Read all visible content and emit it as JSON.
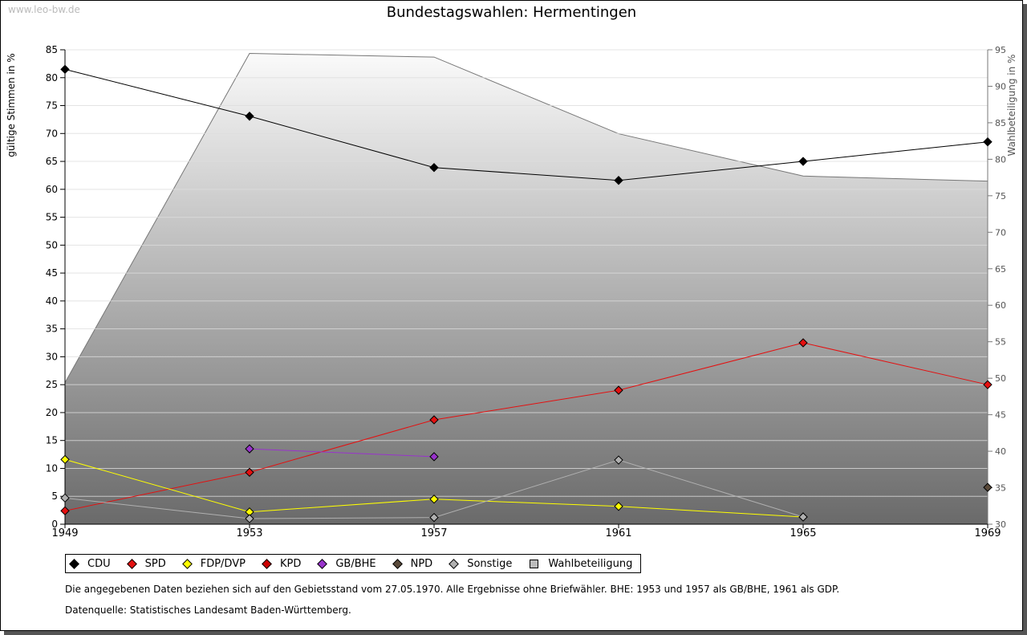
{
  "watermark": "www.leo-bw.de",
  "chart_data": {
    "type": "line",
    "title": "Bundestagswahlen: Hermentingen",
    "ylabel": "gültige Stimmen in %",
    "y2label": "Wahlbeteiligung in %",
    "ylim": [
      0,
      85
    ],
    "y2lim": [
      30,
      95
    ],
    "yticks": [
      0,
      5,
      10,
      15,
      20,
      25,
      30,
      35,
      40,
      45,
      50,
      55,
      60,
      65,
      70,
      75,
      80,
      85
    ],
    "y2ticks": [
      30,
      35,
      40,
      45,
      50,
      55,
      60,
      65,
      70,
      75,
      80,
      85,
      90,
      95
    ],
    "x": [
      "1949",
      "1953",
      "1957",
      "1961",
      "1965",
      "1969"
    ],
    "series": [
      {
        "name": "CDU",
        "color": "#000000",
        "values": [
          81.5,
          73.1,
          63.9,
          61.6,
          65.0,
          68.5
        ]
      },
      {
        "name": "SPD",
        "color": "#e41010",
        "values": [
          2.4,
          9.3,
          18.7,
          24.0,
          32.5,
          25.0
        ]
      },
      {
        "name": "FDP/DVP",
        "color": "#ffff00",
        "values": [
          11.6,
          2.2,
          4.5,
          3.2,
          1.3,
          null
        ]
      },
      {
        "name": "KPD",
        "color": "#cc0000",
        "values": [
          null,
          null,
          null,
          null,
          null,
          null
        ]
      },
      {
        "name": "GB/BHE",
        "color": "#9933cc",
        "values": [
          null,
          13.5,
          12.1,
          null,
          null,
          null
        ]
      },
      {
        "name": "NPD",
        "color": "#5a4a3a",
        "values": [
          null,
          null,
          null,
          null,
          null,
          6.6
        ]
      },
      {
        "name": "Sonstige",
        "color": "#b0b0b0",
        "values": [
          4.7,
          1.0,
          1.2,
          11.5,
          1.3,
          null
        ]
      }
    ],
    "area": {
      "name": "Wahlbeteiligung",
      "axis": "right",
      "values": [
        49.4,
        94.5,
        94.0,
        83.5,
        77.7,
        77.0
      ]
    },
    "grid": true,
    "legend": "bottom"
  },
  "notes": [
    "Die angegebenen Daten beziehen sich auf den Gebietsstand vom 27.05.1970. Alle Ergebnisse ohne Briefwähler. BHE: 1953 und 1957 als GB/BHE, 1961 als GDP.",
    "Datenquelle: Statistisches Landesamt Baden-Württemberg."
  ]
}
